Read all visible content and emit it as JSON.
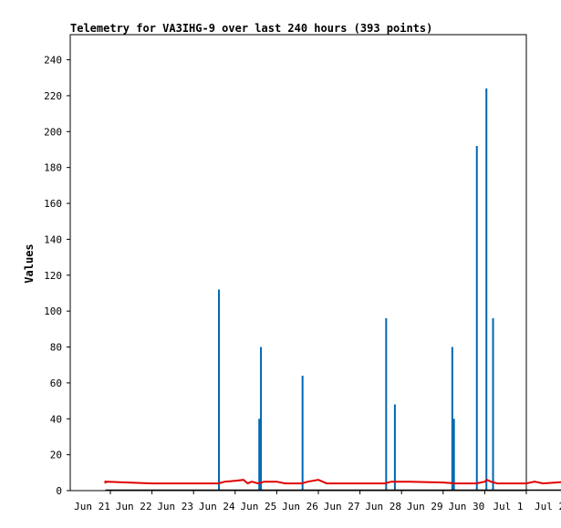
{
  "chart_data": {
    "type": "bar",
    "title": "Telemetry for VA3IHG-9 over last 240 hours (393 points)",
    "xlabel": "",
    "ylabel": "Values",
    "ylim": [
      0,
      254
    ],
    "xlim": [
      0,
      12
    ],
    "grid": false,
    "x_tick_labels": [
      "Jun 21",
      "Jun 22",
      "Jun 23",
      "Jun 24",
      "Jun 25",
      "Jun 26",
      "Jun 27",
      "Jun 28",
      "Jun 29",
      "Jun 30",
      "Jul 1",
      "Jul 2"
    ],
    "y_ticks": [
      0,
      20,
      40,
      60,
      80,
      100,
      120,
      140,
      160,
      180,
      200,
      220,
      240
    ],
    "colors": {
      "spikes": "#0066b3",
      "baseline": "#e00000",
      "zero_line": "#000000"
    },
    "spikes": [
      {
        "x": 2.61,
        "value": 112
      },
      {
        "x": 3.58,
        "value": 40
      },
      {
        "x": 3.62,
        "value": 80
      },
      {
        "x": 4.62,
        "value": 64
      },
      {
        "x": 6.63,
        "value": 96
      },
      {
        "x": 6.84,
        "value": 48
      },
      {
        "x": 8.22,
        "value": 80
      },
      {
        "x": 8.26,
        "value": 40
      },
      {
        "x": 8.81,
        "value": 192
      },
      {
        "x": 9.04,
        "value": 224
      },
      {
        "x": 9.2,
        "value": 96
      }
    ],
    "baseline": [
      [
        -0.12,
        4
      ],
      [
        -0.12,
        5
      ],
      [
        1.0,
        4
      ],
      [
        2.0,
        4
      ],
      [
        2.6,
        4
      ],
      [
        2.75,
        5
      ],
      [
        3.0,
        5.5
      ],
      [
        3.2,
        6
      ],
      [
        3.3,
        4
      ],
      [
        3.4,
        5
      ],
      [
        3.55,
        4
      ],
      [
        3.7,
        5
      ],
      [
        4.0,
        5
      ],
      [
        4.2,
        4
      ],
      [
        4.6,
        4
      ],
      [
        4.75,
        5
      ],
      [
        5.0,
        6
      ],
      [
        5.2,
        4
      ],
      [
        6.0,
        4
      ],
      [
        6.6,
        4
      ],
      [
        6.75,
        5
      ],
      [
        7.2,
        5
      ],
      [
        8.0,
        4.5
      ],
      [
        8.3,
        4
      ],
      [
        8.8,
        4
      ],
      [
        9.0,
        5
      ],
      [
        9.05,
        6
      ],
      [
        9.15,
        5
      ],
      [
        9.3,
        4
      ],
      [
        10.0,
        4
      ],
      [
        10.2,
        5
      ],
      [
        10.4,
        4
      ],
      [
        11.0,
        5
      ],
      [
        11.3,
        5
      ]
    ]
  }
}
